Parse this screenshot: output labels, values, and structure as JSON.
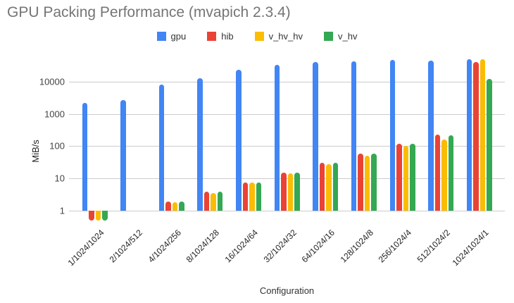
{
  "title": "GPU Packing Performance (mvapich 2.3.4)",
  "axis": {
    "y_label": "MiB/s",
    "x_label": "Configuration"
  },
  "colors": {
    "gpu": "#4285F4",
    "hib": "#EA4335",
    "v_hv_hv": "#FBBC04",
    "v_hv": "#34A853",
    "gridline": "#cccccc",
    "title_text": "#757575"
  },
  "chart_data": {
    "type": "bar",
    "title": "GPU Packing Performance (mvapich 2.3.4)",
    "xlabel": "Configuration",
    "ylabel": "MiB/s",
    "y_scale": "log",
    "y_ticks": [
      1,
      10,
      100,
      1000,
      10000
    ],
    "ylim": [
      0.45,
      60000
    ],
    "baseline": 1,
    "grid": true,
    "legend_position": "top",
    "categories": [
      "1/1024/1024",
      "2/1024/512",
      "4/1024/256",
      "8/1024/128",
      "16/1024/64",
      "32/1024/32",
      "64/1024/16",
      "128/1024/8",
      "256/1024/4",
      "512/1024/2",
      "1024/1024/1"
    ],
    "series": [
      {
        "name": "gpu",
        "color": "#4285F4",
        "values": [
          2150,
          2700,
          8200,
          12700,
          23400,
          33500,
          40000,
          42000,
          46800,
          44000,
          49500
        ]
      },
      {
        "name": "hib",
        "color": "#EA4335",
        "values": [
          0.5,
          1,
          1.9,
          3.8,
          7.6,
          15,
          30,
          60,
          120,
          230,
          39500
        ]
      },
      {
        "name": "v_hv_hv",
        "color": "#FBBC04",
        "values": [
          0.5,
          1,
          1.8,
          3.6,
          7.3,
          14.5,
          28,
          51,
          100,
          160,
          50000
        ]
      },
      {
        "name": "v_hv",
        "color": "#34A853",
        "values": [
          0.5,
          1,
          1.9,
          3.8,
          7.6,
          15,
          30,
          60,
          120,
          215,
          12000
        ]
      }
    ]
  }
}
